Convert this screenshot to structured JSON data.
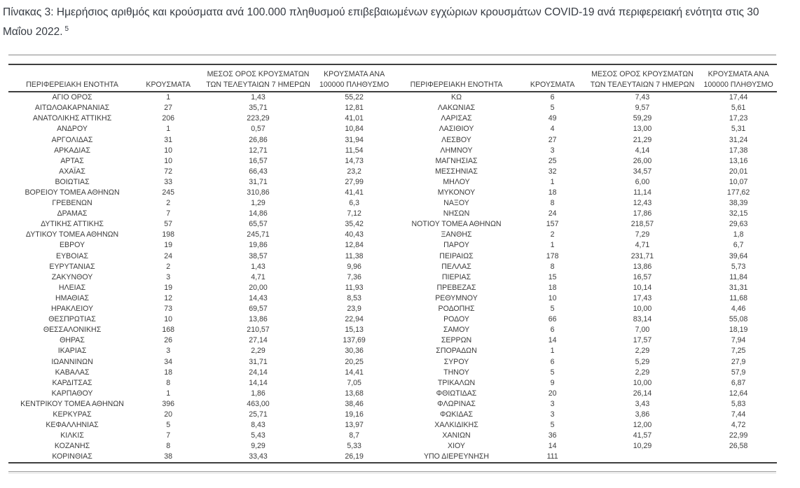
{
  "document": {
    "title": "Πίνακας 3:  Ημερήσιος αριθμός και κρούσματα ανά 100.000 πληθυσμού επιβεβαιωμένων εγχώριων κρουσμάτων COVID-19 ανά περιφερειακή ενότητα στις 30 Μαΐου 2022.",
    "footnote_ref": "5"
  },
  "table": {
    "column_headers": [
      "ΠΕΡΙΦΕΡΕΙΑΚΗ ΕΝΟΤΗΤΑ",
      "ΚΡΟΥΣΜΑΤΑ",
      "ΜΕΣΟΣ ΟΡΟΣ ΚΡΟΥΣΜΑΤΩΝ ΤΩΝ ΤΕΛΕΥΤΑΙΩΝ 7 ΗΜΕΡΩΝ",
      "ΚΡΟΥΣΜΑΤΑ ΑΝΑ 100000 ΠΛΗΘΥΣΜΟ"
    ],
    "left_rows": [
      [
        "ΑΓΙΟ ΟΡΟΣ",
        "1",
        "1,43",
        "55,22"
      ],
      [
        "ΑΙΤΩΛΟΑΚΑΡΝΑΝΙΑΣ",
        "27",
        "35,71",
        "12,81"
      ],
      [
        "ΑΝΑΤΟΛΙΚΗΣ ΑΤΤΙΚΗΣ",
        "206",
        "223,29",
        "41,01"
      ],
      [
        "ΑΝΔΡΟΥ",
        "1",
        "0,57",
        "10,84"
      ],
      [
        "ΑΡΓΟΛΙΔΑΣ",
        "31",
        "26,86",
        "31,94"
      ],
      [
        "ΑΡΚΑΔΙΑΣ",
        "10",
        "12,71",
        "11,54"
      ],
      [
        "ΑΡΤΑΣ",
        "10",
        "16,57",
        "14,73"
      ],
      [
        "ΑΧΑΪΑΣ",
        "72",
        "66,43",
        "23,2"
      ],
      [
        "ΒΟΙΩΤΙΑΣ",
        "33",
        "31,71",
        "27,99"
      ],
      [
        "ΒΟΡΕΙΟΥ ΤΟΜΕΑ ΑΘΗΝΩΝ",
        "245",
        "310,86",
        "41,41"
      ],
      [
        "ΓΡΕΒΕΝΩΝ",
        "2",
        "1,29",
        "6,3"
      ],
      [
        "ΔΡΑΜΑΣ",
        "7",
        "14,86",
        "7,12"
      ],
      [
        "ΔΥΤΙΚΗΣ ΑΤΤΙΚΗΣ",
        "57",
        "65,57",
        "35,42"
      ],
      [
        "ΔΥΤΙΚΟΥ ΤΟΜΕΑ ΑΘΗΝΩΝ",
        "198",
        "245,71",
        "40,43"
      ],
      [
        "ΕΒΡΟΥ",
        "19",
        "19,86",
        "12,84"
      ],
      [
        "ΕΥΒΟΙΑΣ",
        "24",
        "38,57",
        "11,38"
      ],
      [
        "ΕΥΡΥΤΑΝΙΑΣ",
        "2",
        "1,43",
        "9,96"
      ],
      [
        "ΖΑΚΥΝΘΟΥ",
        "3",
        "4,71",
        "7,36"
      ],
      [
        "ΗΛΕΙΑΣ",
        "19",
        "20,00",
        "11,93"
      ],
      [
        "ΗΜΑΘΙΑΣ",
        "12",
        "14,43",
        "8,53"
      ],
      [
        "ΗΡΑΚΛΕΙΟΥ",
        "73",
        "69,57",
        "23,9"
      ],
      [
        "ΘΕΣΠΡΩΤΙΑΣ",
        "10",
        "13,86",
        "22,94"
      ],
      [
        "ΘΕΣΣΑΛΟΝΙΚΗΣ",
        "168",
        "210,57",
        "15,13"
      ],
      [
        "ΘΗΡΑΣ",
        "26",
        "27,14",
        "137,69"
      ],
      [
        "ΙΚΑΡΙΑΣ",
        "3",
        "2,29",
        "30,36"
      ],
      [
        "ΙΩΑΝΝΙΝΩΝ",
        "34",
        "31,71",
        "20,25"
      ],
      [
        "ΚΑΒΑΛΑΣ",
        "18",
        "24,14",
        "14,41"
      ],
      [
        "ΚΑΡΔΙΤΣΑΣ",
        "8",
        "14,14",
        "7,05"
      ],
      [
        "ΚΑΡΠΑΘΟΥ",
        "1",
        "1,86",
        "13,68"
      ],
      [
        "ΚΕΝΤΡΙΚΟΥ ΤΟΜΕΑ ΑΘΗΝΩΝ",
        "396",
        "463,00",
        "38,46"
      ],
      [
        "ΚΕΡΚΥΡΑΣ",
        "20",
        "25,71",
        "19,16"
      ],
      [
        "ΚΕΦΑΛΛΗΝΙΑΣ",
        "5",
        "8,43",
        "13,97"
      ],
      [
        "ΚΙΛΚΙΣ",
        "7",
        "5,43",
        "8,7"
      ],
      [
        "ΚΟΖΑΝΗΣ",
        "8",
        "9,29",
        "5,33"
      ],
      [
        "ΚΟΡΙΝΘΙΑΣ",
        "38",
        "33,43",
        "26,19"
      ]
    ],
    "right_rows": [
      [
        "ΚΩ",
        "6",
        "7,43",
        "17,44"
      ],
      [
        "ΛΑΚΩΝΙΑΣ",
        "5",
        "9,57",
        "5,61"
      ],
      [
        "ΛΑΡΙΣΑΣ",
        "49",
        "59,29",
        "17,23"
      ],
      [
        "ΛΑΣΙΘΙΟΥ",
        "4",
        "13,00",
        "5,31"
      ],
      [
        "ΛΕΣΒΟΥ",
        "27",
        "21,29",
        "31,24"
      ],
      [
        "ΛΗΜΝΟΥ",
        "3",
        "4,14",
        "17,38"
      ],
      [
        "ΜΑΓΝΗΣΙΑΣ",
        "25",
        "26,00",
        "13,16"
      ],
      [
        "ΜΕΣΣΗΝΙΑΣ",
        "32",
        "34,57",
        "20,01"
      ],
      [
        "ΜΗΛΟΥ",
        "1",
        "6,00",
        "10,07"
      ],
      [
        "ΜΥΚΟΝΟΥ",
        "18",
        "11,14",
        "177,62"
      ],
      [
        "ΝΑΞΟΥ",
        "8",
        "12,43",
        "38,39"
      ],
      [
        "ΝΗΣΩΝ",
        "24",
        "17,86",
        "32,15"
      ],
      [
        "ΝΟΤΙΟΥ ΤΟΜΕΑ ΑΘΗΝΩΝ",
        "157",
        "218,57",
        "29,63"
      ],
      [
        "ΞΑΝΘΗΣ",
        "2",
        "7,29",
        "1,8"
      ],
      [
        "ΠΑΡΟΥ",
        "1",
        "4,71",
        "6,7"
      ],
      [
        "ΠΕΙΡΑΙΩΣ",
        "178",
        "231,71",
        "39,64"
      ],
      [
        "ΠΕΛΛΑΣ",
        "8",
        "13,86",
        "5,73"
      ],
      [
        "ΠΙΕΡΙΑΣ",
        "15",
        "16,57",
        "11,84"
      ],
      [
        "ΠΡΕΒΕΖΑΣ",
        "18",
        "10,14",
        "31,31"
      ],
      [
        "ΡΕΘΥΜΝΟΥ",
        "10",
        "17,43",
        "11,68"
      ],
      [
        "ΡΟΔΟΠΗΣ",
        "5",
        "10,00",
        "4,46"
      ],
      [
        "ΡΟΔΟΥ",
        "66",
        "83,14",
        "55,08"
      ],
      [
        "ΣΑΜΟΥ",
        "6",
        "7,00",
        "18,19"
      ],
      [
        "ΣΕΡΡΩΝ",
        "14",
        "17,57",
        "7,94"
      ],
      [
        "ΣΠΟΡΑΔΩΝ",
        "1",
        "2,29",
        "7,25"
      ],
      [
        "ΣΥΡΟΥ",
        "6",
        "5,29",
        "27,9"
      ],
      [
        "ΤΗΝΟΥ",
        "5",
        "2,29",
        "57,9"
      ],
      [
        "ΤΡΙΚΑΛΩΝ",
        "9",
        "10,00",
        "6,87"
      ],
      [
        "ΦΘΙΩΤΙΔΑΣ",
        "20",
        "26,14",
        "12,64"
      ],
      [
        "ΦΛΩΡΙΝΑΣ",
        "3",
        "3,43",
        "5,83"
      ],
      [
        "ΦΩΚΙΔΑΣ",
        "3",
        "3,86",
        "7,44"
      ],
      [
        "ΧΑΛΚΙΔΙΚΗΣ",
        "5",
        "12,00",
        "4,72"
      ],
      [
        "ΧΑΝΙΩΝ",
        "36",
        "41,57",
        "22,99"
      ],
      [
        "ΧΙΟΥ",
        "14",
        "10,29",
        "26,58"
      ],
      [
        "ΥΠΟ ΔΙΕΡΕΥΝΗΣΗ",
        "111",
        "",
        ""
      ]
    ]
  }
}
